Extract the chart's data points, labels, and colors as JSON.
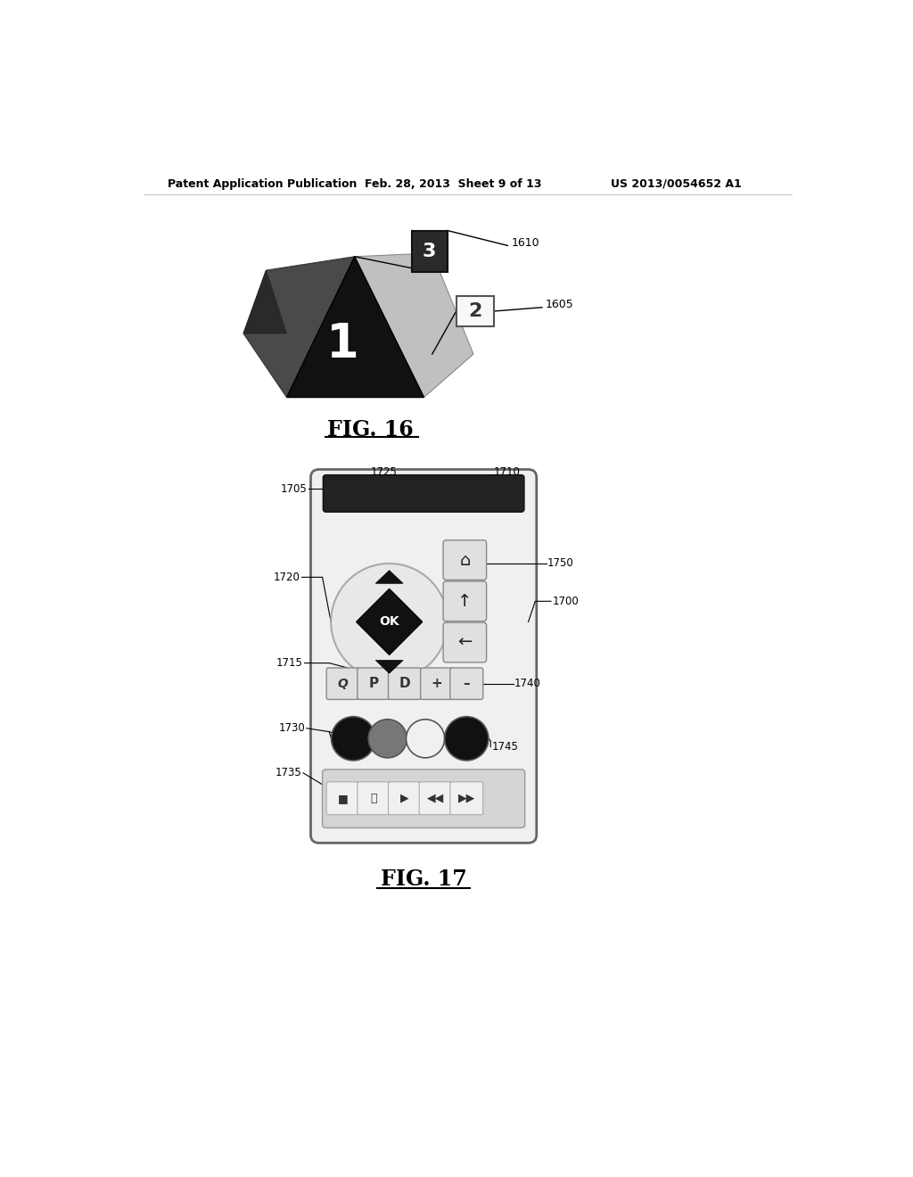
{
  "header_left": "Patent Application Publication",
  "header_mid": "Feb. 28, 2013  Sheet 9 of 13",
  "header_right": "US 2013/0054652 A1",
  "fig16_label": "FIG. 16",
  "fig17_label": "FIG. 17",
  "bg_color": "#ffffff"
}
